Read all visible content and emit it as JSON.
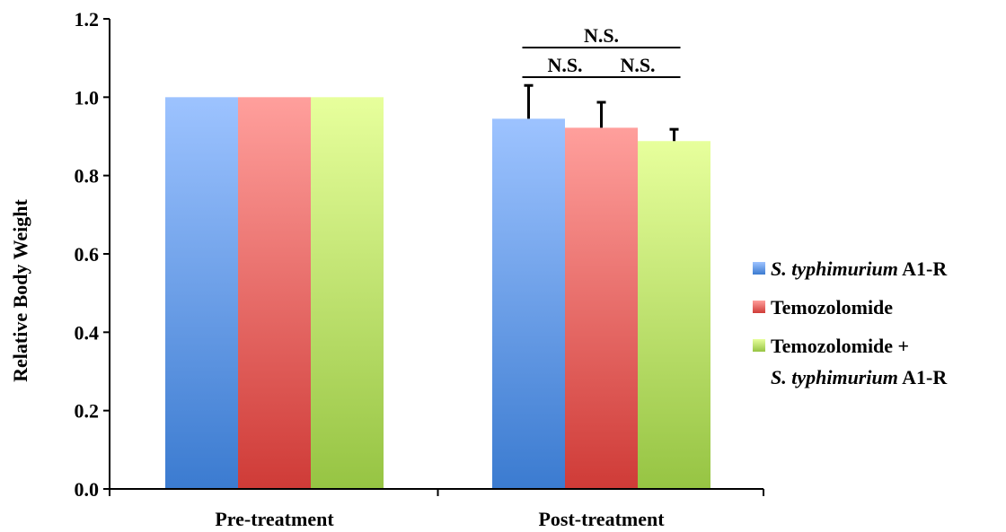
{
  "chart_data": {
    "type": "bar",
    "ylabel": "Relative Body Weight",
    "xlabel": "",
    "ylim": [
      0,
      1.2
    ],
    "yticks": [
      "0.0",
      "0.2",
      "0.4",
      "0.6",
      "0.8",
      "1.0",
      "1.2"
    ],
    "categories": [
      "Pre-treatment",
      "Post-treatment"
    ],
    "series": [
      {
        "name_italic": "S. typhimurium",
        "name_rest": " A1-R",
        "values": [
          1.0,
          0.945
        ],
        "errors": [
          0,
          0.085
        ],
        "color_top": "#9dc3ff",
        "color_bottom": "#3b7bd0"
      },
      {
        "name_italic": "",
        "name_rest": "Temozolomide",
        "values": [
          1.0,
          0.922
        ],
        "errors": [
          0,
          0.065
        ],
        "color_top": "#ff9f9c",
        "color_bottom": "#cf3b37"
      },
      {
        "name_italic": "",
        "name_rest": "Temozolomide +",
        "name_line2_italic": "S. typhimurium",
        "name_line2_rest": " A1-R",
        "values": [
          1.0,
          0.888
        ],
        "errors": [
          0,
          0.03
        ],
        "color_top": "#e7ff9c",
        "color_bottom": "#96c443"
      }
    ],
    "annotations": [
      {
        "text": "N.S.",
        "from_series": 0,
        "to_series": 2,
        "category": 1,
        "level": "upper"
      },
      {
        "text": "N.S.",
        "from_series": 0,
        "to_series": 1,
        "category": 1,
        "level": "lower"
      },
      {
        "text": "N.S.",
        "from_series": 1,
        "to_series": 2,
        "category": 1,
        "level": "lower"
      }
    ],
    "legend_position": "right",
    "grid": false
  }
}
